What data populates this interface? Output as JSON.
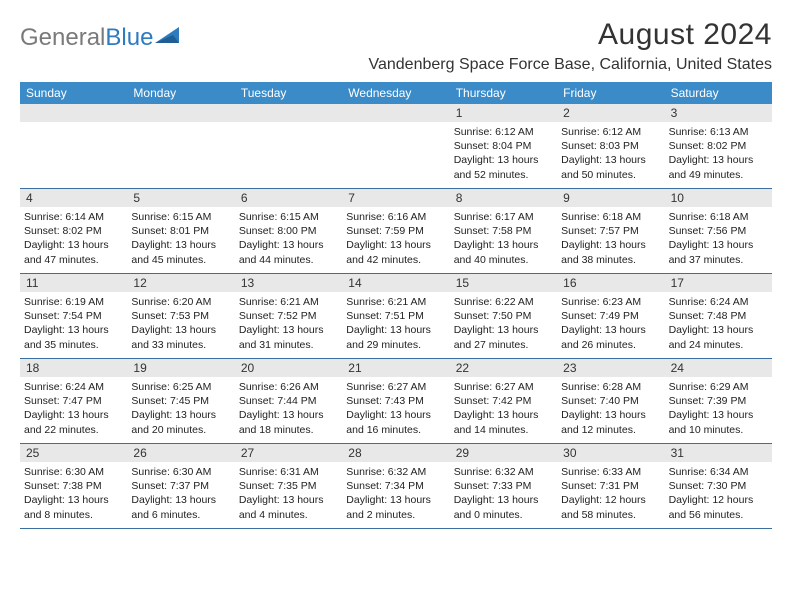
{
  "brand": {
    "part1": "General",
    "part2": "Blue"
  },
  "title": "August 2024",
  "location": "Vandenberg Space Force Base, California, United States",
  "colors": {
    "header_bg": "#3b8bc9",
    "header_text": "#ffffff",
    "daynum_bg": "#e8e8e8",
    "week_divider": "#3b6fa0",
    "brand_gray": "#7a7a7a",
    "brand_blue": "#2f7bbf"
  },
  "weekdays": [
    "Sunday",
    "Monday",
    "Tuesday",
    "Wednesday",
    "Thursday",
    "Friday",
    "Saturday"
  ],
  "weeks": [
    [
      {
        "n": "",
        "sr": "",
        "ss": "",
        "dl": ""
      },
      {
        "n": "",
        "sr": "",
        "ss": "",
        "dl": ""
      },
      {
        "n": "",
        "sr": "",
        "ss": "",
        "dl": ""
      },
      {
        "n": "",
        "sr": "",
        "ss": "",
        "dl": ""
      },
      {
        "n": "1",
        "sr": "Sunrise: 6:12 AM",
        "ss": "Sunset: 8:04 PM",
        "dl": "Daylight: 13 hours and 52 minutes."
      },
      {
        "n": "2",
        "sr": "Sunrise: 6:12 AM",
        "ss": "Sunset: 8:03 PM",
        "dl": "Daylight: 13 hours and 50 minutes."
      },
      {
        "n": "3",
        "sr": "Sunrise: 6:13 AM",
        "ss": "Sunset: 8:02 PM",
        "dl": "Daylight: 13 hours and 49 minutes."
      }
    ],
    [
      {
        "n": "4",
        "sr": "Sunrise: 6:14 AM",
        "ss": "Sunset: 8:02 PM",
        "dl": "Daylight: 13 hours and 47 minutes."
      },
      {
        "n": "5",
        "sr": "Sunrise: 6:15 AM",
        "ss": "Sunset: 8:01 PM",
        "dl": "Daylight: 13 hours and 45 minutes."
      },
      {
        "n": "6",
        "sr": "Sunrise: 6:15 AM",
        "ss": "Sunset: 8:00 PM",
        "dl": "Daylight: 13 hours and 44 minutes."
      },
      {
        "n": "7",
        "sr": "Sunrise: 6:16 AM",
        "ss": "Sunset: 7:59 PM",
        "dl": "Daylight: 13 hours and 42 minutes."
      },
      {
        "n": "8",
        "sr": "Sunrise: 6:17 AM",
        "ss": "Sunset: 7:58 PM",
        "dl": "Daylight: 13 hours and 40 minutes."
      },
      {
        "n": "9",
        "sr": "Sunrise: 6:18 AM",
        "ss": "Sunset: 7:57 PM",
        "dl": "Daylight: 13 hours and 38 minutes."
      },
      {
        "n": "10",
        "sr": "Sunrise: 6:18 AM",
        "ss": "Sunset: 7:56 PM",
        "dl": "Daylight: 13 hours and 37 minutes."
      }
    ],
    [
      {
        "n": "11",
        "sr": "Sunrise: 6:19 AM",
        "ss": "Sunset: 7:54 PM",
        "dl": "Daylight: 13 hours and 35 minutes."
      },
      {
        "n": "12",
        "sr": "Sunrise: 6:20 AM",
        "ss": "Sunset: 7:53 PM",
        "dl": "Daylight: 13 hours and 33 minutes."
      },
      {
        "n": "13",
        "sr": "Sunrise: 6:21 AM",
        "ss": "Sunset: 7:52 PM",
        "dl": "Daylight: 13 hours and 31 minutes."
      },
      {
        "n": "14",
        "sr": "Sunrise: 6:21 AM",
        "ss": "Sunset: 7:51 PM",
        "dl": "Daylight: 13 hours and 29 minutes."
      },
      {
        "n": "15",
        "sr": "Sunrise: 6:22 AM",
        "ss": "Sunset: 7:50 PM",
        "dl": "Daylight: 13 hours and 27 minutes."
      },
      {
        "n": "16",
        "sr": "Sunrise: 6:23 AM",
        "ss": "Sunset: 7:49 PM",
        "dl": "Daylight: 13 hours and 26 minutes."
      },
      {
        "n": "17",
        "sr": "Sunrise: 6:24 AM",
        "ss": "Sunset: 7:48 PM",
        "dl": "Daylight: 13 hours and 24 minutes."
      }
    ],
    [
      {
        "n": "18",
        "sr": "Sunrise: 6:24 AM",
        "ss": "Sunset: 7:47 PM",
        "dl": "Daylight: 13 hours and 22 minutes."
      },
      {
        "n": "19",
        "sr": "Sunrise: 6:25 AM",
        "ss": "Sunset: 7:45 PM",
        "dl": "Daylight: 13 hours and 20 minutes."
      },
      {
        "n": "20",
        "sr": "Sunrise: 6:26 AM",
        "ss": "Sunset: 7:44 PM",
        "dl": "Daylight: 13 hours and 18 minutes."
      },
      {
        "n": "21",
        "sr": "Sunrise: 6:27 AM",
        "ss": "Sunset: 7:43 PM",
        "dl": "Daylight: 13 hours and 16 minutes."
      },
      {
        "n": "22",
        "sr": "Sunrise: 6:27 AM",
        "ss": "Sunset: 7:42 PM",
        "dl": "Daylight: 13 hours and 14 minutes."
      },
      {
        "n": "23",
        "sr": "Sunrise: 6:28 AM",
        "ss": "Sunset: 7:40 PM",
        "dl": "Daylight: 13 hours and 12 minutes."
      },
      {
        "n": "24",
        "sr": "Sunrise: 6:29 AM",
        "ss": "Sunset: 7:39 PM",
        "dl": "Daylight: 13 hours and 10 minutes."
      }
    ],
    [
      {
        "n": "25",
        "sr": "Sunrise: 6:30 AM",
        "ss": "Sunset: 7:38 PM",
        "dl": "Daylight: 13 hours and 8 minutes."
      },
      {
        "n": "26",
        "sr": "Sunrise: 6:30 AM",
        "ss": "Sunset: 7:37 PM",
        "dl": "Daylight: 13 hours and 6 minutes."
      },
      {
        "n": "27",
        "sr": "Sunrise: 6:31 AM",
        "ss": "Sunset: 7:35 PM",
        "dl": "Daylight: 13 hours and 4 minutes."
      },
      {
        "n": "28",
        "sr": "Sunrise: 6:32 AM",
        "ss": "Sunset: 7:34 PM",
        "dl": "Daylight: 13 hours and 2 minutes."
      },
      {
        "n": "29",
        "sr": "Sunrise: 6:32 AM",
        "ss": "Sunset: 7:33 PM",
        "dl": "Daylight: 13 hours and 0 minutes."
      },
      {
        "n": "30",
        "sr": "Sunrise: 6:33 AM",
        "ss": "Sunset: 7:31 PM",
        "dl": "Daylight: 12 hours and 58 minutes."
      },
      {
        "n": "31",
        "sr": "Sunrise: 6:34 AM",
        "ss": "Sunset: 7:30 PM",
        "dl": "Daylight: 12 hours and 56 minutes."
      }
    ]
  ]
}
